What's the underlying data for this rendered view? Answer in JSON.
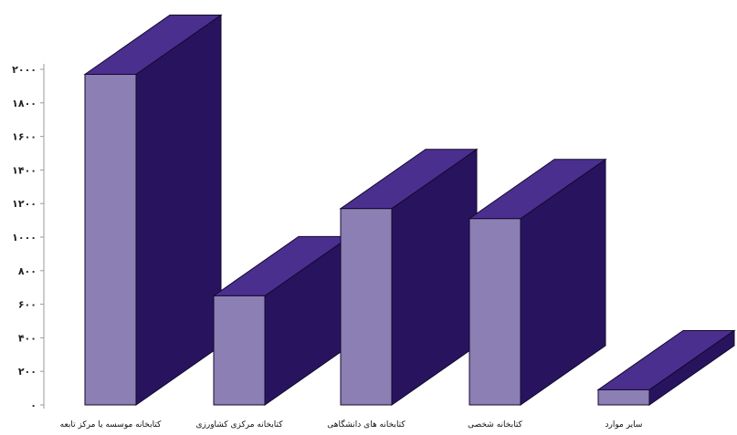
{
  "chart_data": {
    "type": "bar",
    "style": "3d",
    "title": "",
    "xlabel": "",
    "ylabel": "",
    "ylim": [
      0,
      2000
    ],
    "yticks": [
      0,
      200,
      400,
      600,
      800,
      1000,
      1200,
      1400,
      1600,
      1800,
      2000
    ],
    "ytick_labels": [
      "۰",
      "۲۰۰",
      "۴۰۰",
      "۶۰۰",
      "۸۰۰",
      "۱۰۰۰",
      "۱۲۰۰",
      "۱۴۰۰",
      "۱۶۰۰",
      "۱۸۰۰",
      "۲۰۰۰"
    ],
    "categories": [
      "کتابخانه موسسه یا مرکز تابعه",
      "کتابخانه مرکزی کشاورزی",
      "کتابخانه های دانشگاهی",
      "کتابخانه شخصی",
      "سایر موارد"
    ],
    "values": [
      1970,
      650,
      1170,
      1110,
      90
    ],
    "grid": false,
    "legend": "none",
    "colors": {
      "front": "#8c7fb4",
      "side": "#28145e",
      "top": "#4b2f8f",
      "edge": "#14092f",
      "axis": "#9a9a9a"
    }
  }
}
